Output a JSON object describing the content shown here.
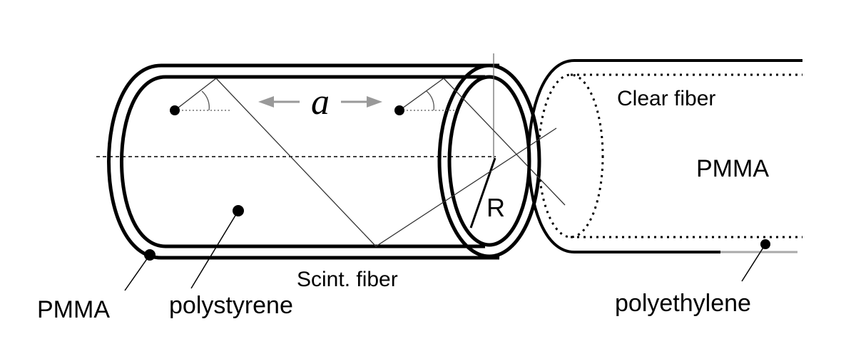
{
  "labels": {
    "spacing": "a",
    "radius": "R",
    "scint_fiber": "Scint. fiber",
    "clear_fiber": "Clear fiber",
    "clear_core": "PMMA",
    "scint_cladding": "PMMA",
    "scint_core": "polystyrene",
    "clear_jacket": "polyethylene"
  },
  "colors": {
    "line": "#000000",
    "arrow": "#999999",
    "thin_line": "#666666"
  }
}
